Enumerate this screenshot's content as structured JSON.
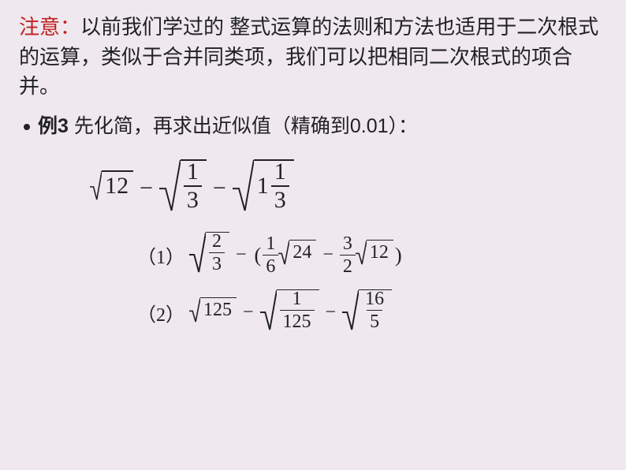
{
  "note": {
    "label": "注意：",
    "text": "以前我们学过的 整式运算的法则和方法也适用于二次根式的运算，类似于合并同类项，我们可以把相同二次根式的项合并。",
    "label_color": "#c02020",
    "text_color": "#222222"
  },
  "example": {
    "prefix": "例3",
    "body": " 先化简，再求出近似值（精确到0.01）："
  },
  "main_expr": {
    "terms": [
      {
        "type": "sqrt_int",
        "value": "12"
      },
      {
        "type": "minus"
      },
      {
        "type": "sqrt_frac",
        "num": "1",
        "den": "3"
      },
      {
        "type": "minus"
      },
      {
        "type": "sqrt_mixed",
        "whole": "1",
        "num": "1",
        "den": "3"
      }
    ]
  },
  "sub_items": [
    {
      "label": "（1）",
      "tokens": [
        {
          "type": "sqrt_frac",
          "num": "2",
          "den": "3"
        },
        {
          "type": "minus"
        },
        {
          "type": "lparen"
        },
        {
          "type": "frac",
          "num": "1",
          "den": "6"
        },
        {
          "type": "sqrt_int",
          "value": "24"
        },
        {
          "type": "minus"
        },
        {
          "type": "frac",
          "num": "3",
          "den": "2"
        },
        {
          "type": "sqrt_int",
          "value": "12"
        },
        {
          "type": "rparen"
        }
      ]
    },
    {
      "label": "（2）",
      "tokens": [
        {
          "type": "sqrt_int",
          "value": "125"
        },
        {
          "type": "minus"
        },
        {
          "type": "sqrt_frac",
          "num": "1",
          "den": "125"
        },
        {
          "type": "minus"
        },
        {
          "type": "sqrt_frac",
          "num": "16",
          "den": "5"
        }
      ]
    }
  ],
  "style": {
    "background_color": "#efe8ee",
    "body_font": "Microsoft YaHei",
    "math_font": "Times New Roman",
    "note_fontsize": 26,
    "example_fontsize": 25,
    "main_math_fontsize": 30,
    "sub_math_fontsize": 24,
    "text_color": "#222222",
    "line_color": "#222222"
  }
}
